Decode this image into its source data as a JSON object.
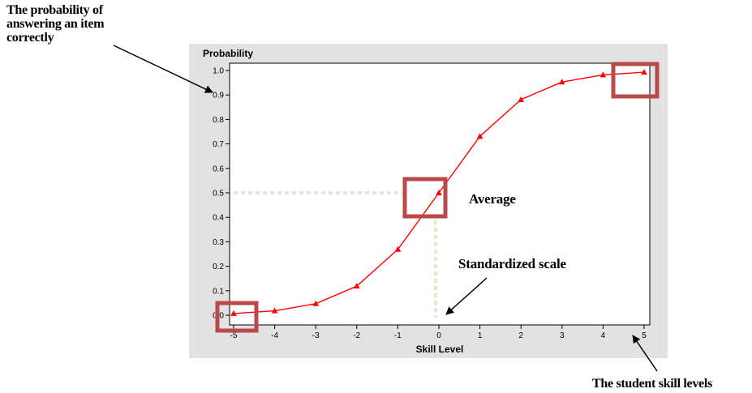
{
  "chart_data": {
    "type": "line",
    "ylabel": "Probability",
    "xlabel": "Skill Level",
    "x": [
      -5,
      -4,
      -3,
      -2,
      -1,
      0,
      1,
      2,
      3,
      4,
      5
    ],
    "series": [
      {
        "values": [
          0.007,
          0.018,
          0.047,
          0.119,
          0.269,
          0.5,
          0.731,
          0.881,
          0.953,
          0.982,
          0.993
        ],
        "color": "#ff0000"
      }
    ],
    "xlim": [
      -5,
      5
    ],
    "ylim": [
      0,
      1
    ],
    "xticks": [
      "-5",
      "-4",
      "-3",
      "-2",
      "-1",
      "0",
      "1",
      "2",
      "3",
      "4",
      "5"
    ],
    "yticks": [
      "0.0",
      "0.1",
      "0.2",
      "0.3",
      "0.4",
      "0.5",
      "0.6",
      "0.7",
      "0.8",
      "0.9",
      "1.0"
    ],
    "grid": false,
    "marker": "triangle"
  },
  "annotations": {
    "probability_note": [
      "The probability of",
      "answering an item",
      "correctly"
    ],
    "average": "Average",
    "standardized_scale": "Standardized scale",
    "skill_levels_note": "The student skill levels"
  },
  "colors": {
    "frame": "#e2e2e2",
    "line": "#ff0000",
    "highlight_box": "#b84a4a",
    "guide": "#e6e6d6"
  }
}
